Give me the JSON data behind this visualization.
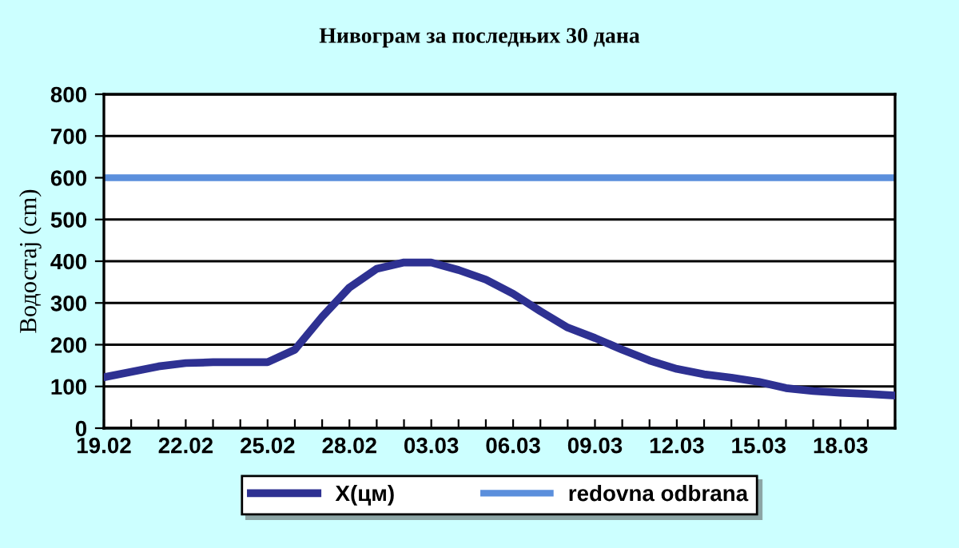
{
  "chart_data": {
    "type": "line",
    "title": "Нивограм за последњих 30 дана",
    "ylabel": "Водостај (cm)",
    "categories": [
      "19.02",
      null,
      null,
      "22.02",
      null,
      null,
      "25.02",
      null,
      null,
      "28.02",
      null,
      null,
      "03.03",
      null,
      null,
      "06.03",
      null,
      null,
      "09.03",
      null,
      null,
      "12.03",
      null,
      null,
      "15.03",
      null,
      null,
      "18.03",
      null,
      null
    ],
    "series": [
      {
        "name": "X(цм)",
        "color": "#2e3192",
        "values": [
          122,
          135,
          148,
          156,
          158,
          158,
          158,
          188,
          267,
          337,
          382,
          397,
          397,
          379,
          356,
          322,
          280,
          241,
          216,
          188,
          162,
          142,
          129,
          121,
          111,
          96,
          89,
          85,
          82,
          78
        ]
      }
    ],
    "ref_lines": [
      {
        "axis": "y",
        "value": 600,
        "label": "redovna odbrana",
        "color": "#5b8fdc"
      }
    ],
    "ylim": [
      0,
      800
    ],
    "yticks": [
      0,
      100,
      200,
      300,
      400,
      500,
      600,
      700,
      800
    ],
    "grid": "y",
    "legend": "bottom",
    "marker": "none",
    "line_style": "solid"
  }
}
